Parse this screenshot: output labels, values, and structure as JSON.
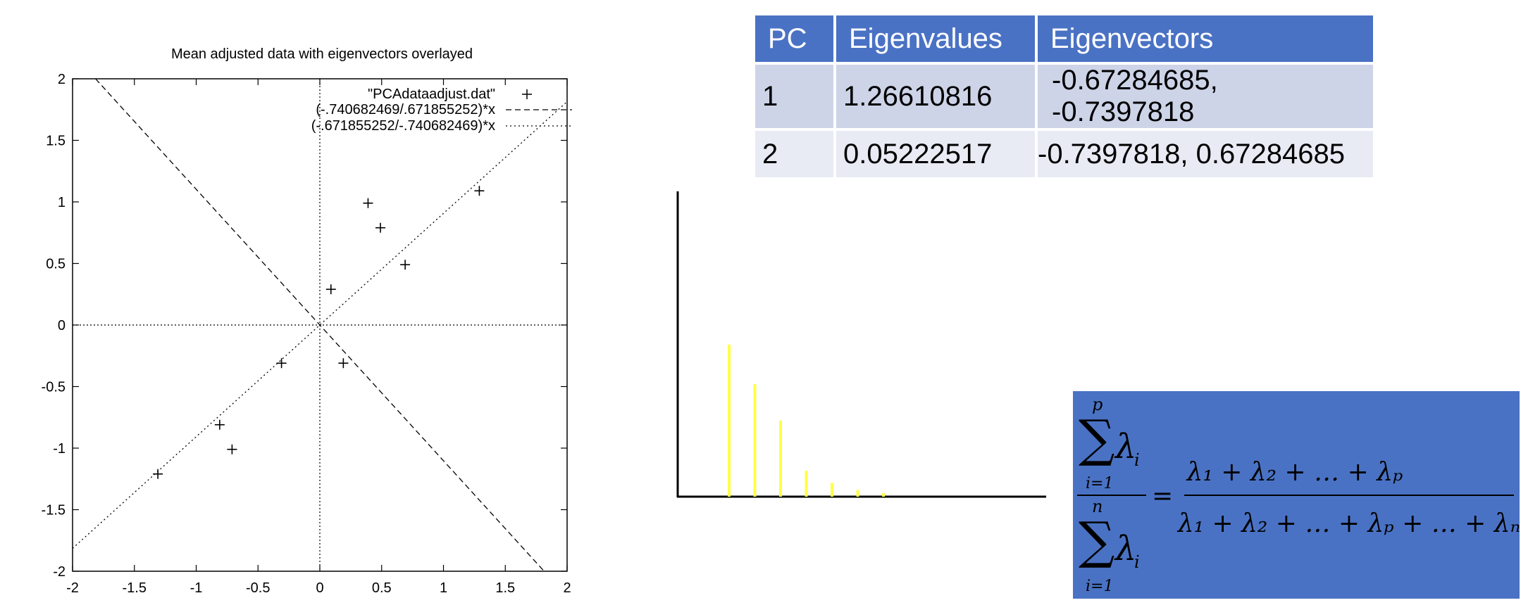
{
  "chart_data": [
    {
      "type": "scatter",
      "title": "Mean adjusted data with eigenvectors overlayed",
      "xlim": [
        -2,
        2
      ],
      "ylim": [
        -2,
        2
      ],
      "x_ticks": [
        "-2",
        "-1.5",
        "-1",
        "-0.5",
        "0",
        "0.5",
        "1",
        "1.5",
        "2"
      ],
      "y_ticks": [
        "2",
        "1.5",
        "1",
        "0.5",
        "0",
        "-0.5",
        "-1",
        "-1.5",
        "-2"
      ],
      "legend_position": "top-right",
      "series": [
        {
          "name": "\"PCAdataadjust.dat\"",
          "marker": "plus",
          "points": [
            [
              0.69,
              0.49
            ],
            [
              -1.31,
              -1.21
            ],
            [
              0.39,
              0.99
            ],
            [
              0.09,
              0.29
            ],
            [
              1.29,
              1.09
            ],
            [
              0.49,
              0.79
            ],
            [
              0.19,
              -0.31
            ],
            [
              -0.81,
              -0.81
            ],
            [
              -0.31,
              -0.31
            ],
            [
              -0.71,
              -1.01
            ]
          ]
        },
        {
          "name": "(-.740682469/.671855252)*x",
          "line": "dashed",
          "slope": -1.1024
        },
        {
          "name": "(-.671855252/-.740682469)*x",
          "line": "dotted",
          "slope": 0.9071
        }
      ]
    },
    {
      "type": "bar",
      "title": "",
      "color": "#ffff44",
      "values": [
        0.5,
        0.37,
        0.25,
        0.085,
        0.045,
        0.022,
        0.012
      ]
    }
  ],
  "eigen_table": {
    "headers": [
      "PC",
      "Eigenvalues",
      "Eigenvectors"
    ],
    "rows": [
      [
        "1",
        "1.26610816",
        "-0.67284685, -0.7397818"
      ],
      [
        "2",
        "0.05222517",
        "-0.7397818, 0.67284685"
      ]
    ]
  },
  "formula": {
    "sum_symbol": "∑",
    "lambda_i": "λ",
    "sub_i": "i",
    "lower_limit": "i=1",
    "upper_num": "p",
    "upper_den": "n",
    "equals": "=",
    "rhs_numerator": "λ₁ + λ₂ + … + λₚ",
    "rhs_denominator": "λ₁ + λ₂ + … + λₚ + … + λₙ"
  },
  "colors": {
    "accent": "#4a72c4",
    "header_row": "#cdd4e8",
    "alt_row": "#e8ebf4",
    "scree_bar": "#ffff44"
  }
}
